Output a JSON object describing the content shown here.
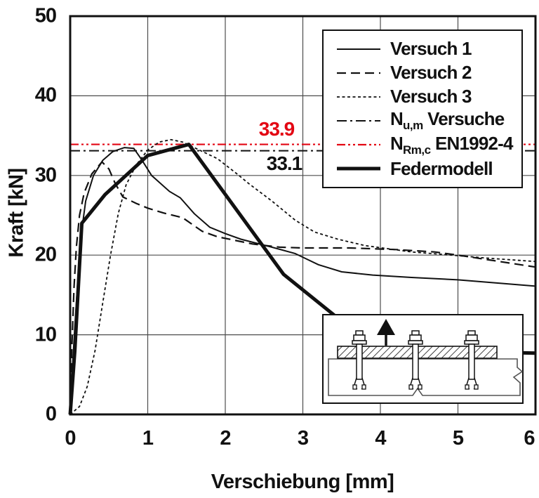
{
  "colors": {
    "red": "#e30613",
    "line_black": "#111111",
    "grid_gray": "#4d4d4d"
  },
  "chart_data": {
    "type": "line",
    "title": "",
    "xlabel": "Verschiebung [mm]",
    "ylabel": "Kraft [kN]",
    "xlim": [
      0,
      6
    ],
    "ylim": [
      0,
      50
    ],
    "xticks": [
      0,
      1,
      2,
      3,
      4,
      5,
      6
    ],
    "yticks": [
      0,
      10,
      20,
      30,
      40,
      50
    ],
    "grid": true,
    "legend_position": "upper right",
    "series": [
      {
        "name": "Versuch 1",
        "style": "v1",
        "points": [
          [
            0,
            0
          ],
          [
            0.03,
            6
          ],
          [
            0.06,
            11
          ],
          [
            0.1,
            17
          ],
          [
            0.14,
            22.5
          ],
          [
            0.2,
            26.8
          ],
          [
            0.3,
            30.0
          ],
          [
            0.42,
            31.9
          ],
          [
            0.55,
            33.0
          ],
          [
            0.7,
            33.5
          ],
          [
            0.82,
            33.4
          ],
          [
            0.92,
            32.0
          ],
          [
            1.05,
            30.0
          ],
          [
            1.28,
            28.0
          ],
          [
            1.42,
            27.2
          ],
          [
            1.6,
            25.2
          ],
          [
            1.8,
            23.5
          ],
          [
            2.0,
            22.7
          ],
          [
            2.2,
            22.0
          ],
          [
            2.6,
            21.0
          ],
          [
            2.9,
            20.2
          ],
          [
            3.2,
            18.8
          ],
          [
            3.5,
            17.9
          ],
          [
            3.9,
            17.5
          ],
          [
            4.4,
            17.2
          ],
          [
            5.0,
            16.9
          ],
          [
            5.5,
            16.5
          ],
          [
            6.0,
            16.1
          ]
        ]
      },
      {
        "name": "Versuch 2",
        "style": "v2",
        "points": [
          [
            0,
            0
          ],
          [
            0.02,
            8
          ],
          [
            0.05,
            16
          ],
          [
            0.08,
            21
          ],
          [
            0.12,
            25
          ],
          [
            0.18,
            27.8
          ],
          [
            0.28,
            30.2
          ],
          [
            0.41,
            31.7
          ],
          [
            0.5,
            30.8
          ],
          [
            0.58,
            29.0
          ],
          [
            0.68,
            27.3
          ],
          [
            0.85,
            26.5
          ],
          [
            1.0,
            25.9
          ],
          [
            1.2,
            25.3
          ],
          [
            1.45,
            24.7
          ],
          [
            1.7,
            23.0
          ],
          [
            1.9,
            22.3
          ],
          [
            2.35,
            21.4
          ],
          [
            2.7,
            21.0
          ],
          [
            3.0,
            20.9
          ],
          [
            3.6,
            20.9
          ],
          [
            4.2,
            20.7
          ],
          [
            4.7,
            20.4
          ],
          [
            5.0,
            20.0
          ],
          [
            5.4,
            19.4
          ],
          [
            6.0,
            18.5
          ]
        ]
      },
      {
        "name": "Versuch 3",
        "style": "v3",
        "points": [
          [
            0,
            0
          ],
          [
            0.12,
            1
          ],
          [
            0.22,
            3.5
          ],
          [
            0.32,
            8
          ],
          [
            0.42,
            14
          ],
          [
            0.52,
            20
          ],
          [
            0.62,
            25.2
          ],
          [
            0.72,
            28.8
          ],
          [
            0.85,
            31.3
          ],
          [
            1.0,
            33.2
          ],
          [
            1.15,
            34.2
          ],
          [
            1.3,
            34.5
          ],
          [
            1.45,
            34.2
          ],
          [
            1.6,
            33.5
          ],
          [
            1.9,
            32.1
          ],
          [
            2.15,
            30.2
          ],
          [
            2.3,
            29.0
          ],
          [
            2.6,
            26.8
          ],
          [
            2.9,
            24.4
          ],
          [
            3.15,
            22.9
          ],
          [
            3.45,
            22.0
          ],
          [
            3.8,
            21.2
          ],
          [
            4.1,
            20.8
          ],
          [
            4.4,
            20.4
          ],
          [
            4.8,
            20.1
          ],
          [
            5.4,
            19.6
          ],
          [
            6.0,
            19.2
          ]
        ]
      },
      {
        "name": "Federmodell",
        "style": "feder",
        "points": [
          [
            0,
            0
          ],
          [
            0.06,
            8
          ],
          [
            0.11,
            17
          ],
          [
            0.15,
            24
          ],
          [
            0.45,
            27.6
          ],
          [
            1.0,
            32.5
          ],
          [
            1.53,
            33.9
          ],
          [
            2.75,
            17.6
          ],
          [
            3.4,
            12.5
          ],
          [
            3.9,
            8.1
          ],
          [
            5.0,
            7.9
          ],
          [
            6.0,
            7.7
          ]
        ]
      }
    ],
    "reference_lines": [
      {
        "name_pre": "N",
        "name_sub": "Rm,c",
        "name_post": " EN1992-4",
        "value": 33.9,
        "style": "nrmc",
        "color": "red"
      },
      {
        "name_pre": "N",
        "name_sub": "u,m",
        "name_post": " Versuche",
        "value": 33.1,
        "style": "num",
        "color": "black"
      }
    ],
    "annotations": [
      {
        "text": "33.9",
        "color": "red"
      },
      {
        "text": "33.1",
        "color": "black"
      }
    ]
  },
  "legend": {
    "items": [
      {
        "key": "v1",
        "label": "Versuch 1"
      },
      {
        "key": "v2",
        "label": "Versuch 2"
      },
      {
        "key": "v3",
        "label": "Versuch 3"
      },
      {
        "key": "num",
        "pre": "N",
        "sub": "u,m",
        "post": " Versuche"
      },
      {
        "key": "nrmc",
        "pre": "N",
        "sub": "Rm,c",
        "post": " EN1992-4",
        "color": "red"
      },
      {
        "key": "feder",
        "label": "Federmodell"
      }
    ]
  },
  "inset": {
    "description": "anchor-pullout-test-schematic",
    "anchor_count": 3,
    "arrow_icon": "upward-load-arrow"
  }
}
